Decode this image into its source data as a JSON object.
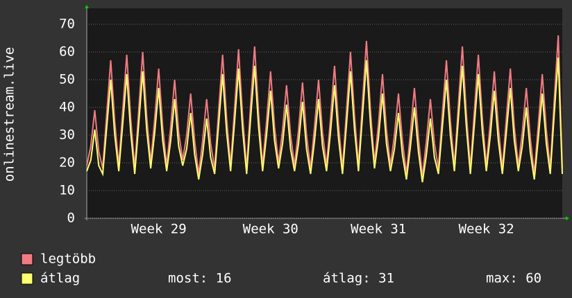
{
  "chart_data": {
    "type": "line",
    "y_label": "onlinestream.live",
    "categories": [
      null,
      null,
      null,
      null,
      null,
      null,
      null,
      null,
      null,
      null,
      null,
      null,
      null,
      null,
      null,
      null,
      null,
      null,
      "Week 29",
      null,
      null,
      null,
      null,
      null,
      null,
      null,
      null,
      null,
      null,
      null,
      null,
      null,
      null,
      null,
      null,
      null,
      null,
      null,
      null,
      null,
      null,
      null,
      null,
      null,
      null,
      null,
      "Week 30",
      null,
      null,
      null,
      null,
      null,
      null,
      null,
      null,
      null,
      null,
      null,
      null,
      null,
      null,
      null,
      null,
      null,
      null,
      null,
      null,
      null,
      null,
      null,
      null,
      null,
      null,
      "Week 31",
      null,
      null,
      null,
      null,
      null,
      null,
      null,
      null,
      null,
      null,
      null,
      null,
      null,
      null,
      null,
      null,
      null,
      null,
      null,
      null,
      null,
      null,
      null,
      null,
      null,
      null,
      "Week 32",
      null,
      null,
      null,
      null,
      null,
      null,
      null,
      null,
      null,
      null,
      null,
      null,
      null,
      null,
      null,
      null,
      null,
      null,
      null
    ],
    "series": [
      {
        "name": "legtöbb",
        "color": "#f07c82",
        "values": [
          19,
          26,
          39,
          24,
          18,
          38,
          57,
          35,
          19,
          39,
          59,
          36,
          18,
          39,
          60,
          37,
          20,
          36,
          54,
          33,
          19,
          33,
          50,
          31,
          21,
          30,
          45,
          28,
          16,
          28,
          43,
          27,
          18,
          39,
          59,
          36,
          19,
          40,
          61,
          37,
          18,
          41,
          62,
          38,
          19,
          35,
          53,
          33,
          20,
          32,
          48,
          30,
          19,
          32,
          49,
          30,
          18,
          33,
          50,
          31,
          19,
          36,
          55,
          34,
          18,
          39,
          60,
          37,
          19,
          42,
          64,
          39,
          20,
          34,
          52,
          32,
          19,
          30,
          45,
          28,
          16,
          31,
          47,
          29,
          15,
          28,
          43,
          27,
          18,
          38,
          57,
          35,
          19,
          41,
          62,
          38,
          18,
          39,
          59,
          36,
          19,
          35,
          53,
          33,
          18,
          36,
          54,
          33,
          19,
          31,
          47,
          29,
          16,
          34,
          52,
          32,
          18,
          43,
          66,
          18
        ]
      },
      {
        "name": "átlag",
        "color": "#ffff70",
        "values": [
          17,
          21,
          32,
          19,
          16,
          33,
          50,
          30,
          17,
          34,
          52,
          31,
          16,
          34,
          53,
          32,
          18,
          31,
          47,
          28,
          17,
          28,
          43,
          26,
          19,
          25,
          38,
          23,
          14,
          23,
          36,
          22,
          16,
          34,
          52,
          31,
          17,
          35,
          54,
          32,
          16,
          36,
          55,
          33,
          17,
          30,
          46,
          28,
          18,
          27,
          41,
          25,
          17,
          27,
          42,
          25,
          16,
          28,
          43,
          26,
          17,
          31,
          48,
          29,
          16,
          34,
          53,
          32,
          17,
          37,
          57,
          34,
          18,
          29,
          45,
          27,
          17,
          25,
          38,
          23,
          14,
          26,
          40,
          24,
          13,
          23,
          36,
          22,
          16,
          33,
          50,
          30,
          17,
          36,
          55,
          33,
          16,
          34,
          52,
          31,
          17,
          30,
          46,
          28,
          16,
          31,
          47,
          28,
          17,
          26,
          40,
          24,
          14,
          29,
          45,
          27,
          16,
          38,
          58,
          16
        ]
      }
    ],
    "stats": [
      "most: 16",
      "átlag: 31",
      "max: 60"
    ],
    "ylim": [
      0,
      75
    ],
    "yticks": [
      0,
      10,
      20,
      30,
      40,
      50,
      60,
      70
    ],
    "grid": true
  }
}
